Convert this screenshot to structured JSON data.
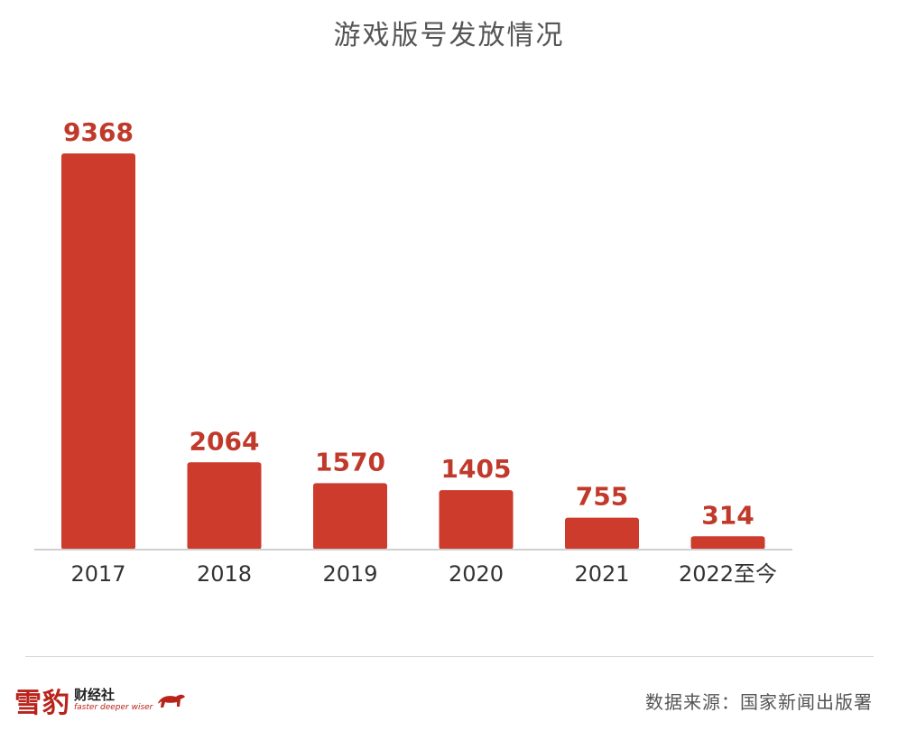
{
  "chart_data": {
    "type": "bar",
    "title": "游戏版号发放情况",
    "categories": [
      "2017",
      "2018",
      "2019",
      "2020",
      "2021",
      "2022至今"
    ],
    "values": [
      9368,
      2064,
      1570,
      1405,
      755,
      314
    ],
    "xlabel": "",
    "ylabel": "",
    "ylim": [
      0,
      9368
    ],
    "grid": false,
    "legend": "none",
    "bar_color": "#cc3b2b",
    "label_color": "#c0392b"
  },
  "footer": {
    "brand_main": "雪豹",
    "brand_sub": "财经社",
    "brand_slogan": "faster deeper wiser",
    "brand_color": "#b8231a",
    "source_note": "数据来源：国家新闻出版署"
  }
}
